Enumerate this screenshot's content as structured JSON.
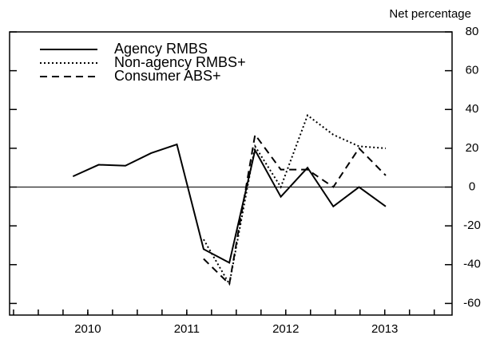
{
  "chart_data": {
    "type": "line",
    "y_axis_label": "Net percentage",
    "x": [
      2010.35,
      2010.61,
      2010.88,
      2011.14,
      2011.4,
      2011.67,
      2011.93,
      2012.19,
      2012.45,
      2012.72,
      2012.98,
      2013.24,
      2013.51
    ],
    "series": [
      {
        "name": "Agency RMBS",
        "color": "#000000",
        "dash": "solid",
        "values": [
          5.5,
          11.5,
          11,
          17.5,
          22,
          -32,
          -39,
          19,
          -5,
          10,
          -10,
          0,
          -10
        ]
      },
      {
        "name": "Non-agency RMBS+",
        "color": "#000000",
        "dash": "dotted",
        "values": [
          null,
          null,
          null,
          null,
          null,
          -27,
          -50,
          21,
          0,
          37,
          27,
          21,
          20
        ]
      },
      {
        "name": "Consumer ABS+",
        "color": "#000000",
        "dash": "dashed",
        "values": [
          null,
          null,
          null,
          null,
          null,
          -37,
          -50,
          27,
          9,
          9,
          0,
          20,
          6
        ]
      }
    ],
    "xlim": [
      2009.71,
      2014.18
    ],
    "xticks": [
      {
        "value": 2010.5,
        "label": "2010"
      },
      {
        "value": 2011.5,
        "label": "2011"
      },
      {
        "value": 2012.5,
        "label": "2012"
      },
      {
        "value": 2013.5,
        "label": "2013"
      }
    ],
    "xminorticks": [
      2009.75,
      2010,
      2010.25,
      2010.5,
      2010.75,
      2011,
      2011.25,
      2011.5,
      2011.75,
      2012,
      2012.25,
      2012.5,
      2012.75,
      2013,
      2013.25,
      2013.5,
      2013.75,
      2014
    ],
    "ylim": [
      -66,
      80
    ],
    "yticks": [
      -60,
      -40,
      -20,
      0,
      20,
      40,
      60,
      80
    ],
    "zero_line": true,
    "legend": "upper left"
  }
}
